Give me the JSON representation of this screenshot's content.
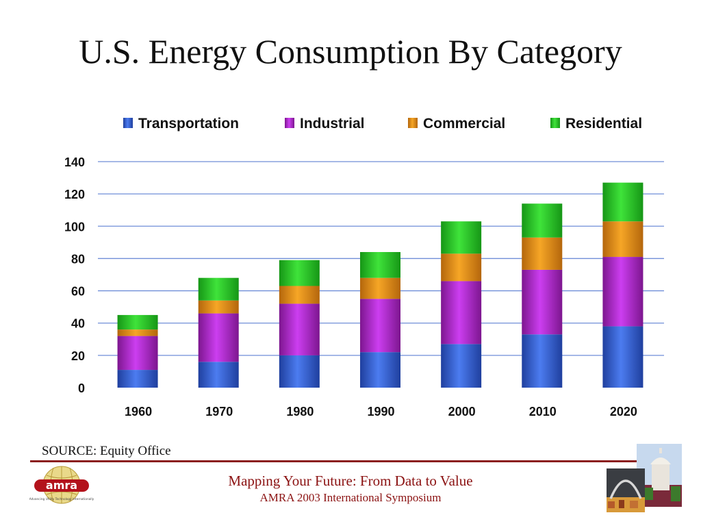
{
  "slide": {
    "title": "U.S. Energy Consumption By Category",
    "source": "SOURCE: Equity Office",
    "footer_title": "Mapping Your Future: From Data to Value",
    "footer_subtitle": "AMRA 2003 International Symposium",
    "logo_text": "amra",
    "logo_tagline": "Advancing Utility Technology Internationally"
  },
  "chart_data": {
    "type": "bar",
    "stacked": true,
    "title": "U.S. Energy Consumption By Category",
    "categories": [
      "1960",
      "1970",
      "1980",
      "1990",
      "2000",
      "2010",
      "2020"
    ],
    "ylim": [
      0,
      140
    ],
    "yticks": [
      0,
      20,
      40,
      60,
      80,
      100,
      120,
      140
    ],
    "grid": true,
    "legend_position": "top",
    "series": [
      {
        "name": "Transportation",
        "color": "#3a62d6",
        "values": [
          11,
          16,
          20,
          22,
          27,
          33,
          38
        ]
      },
      {
        "name": "Industrial",
        "color": "#b12ad6",
        "values": [
          21,
          30,
          32,
          33,
          39,
          40,
          43
        ]
      },
      {
        "name": "Commercial",
        "color": "#ec9418",
        "values": [
          4,
          8,
          11,
          13,
          17,
          20,
          22
        ]
      },
      {
        "name": "Residential",
        "color": "#2ecb2a",
        "values": [
          9,
          14,
          16,
          16,
          20,
          21,
          24
        ]
      }
    ]
  }
}
